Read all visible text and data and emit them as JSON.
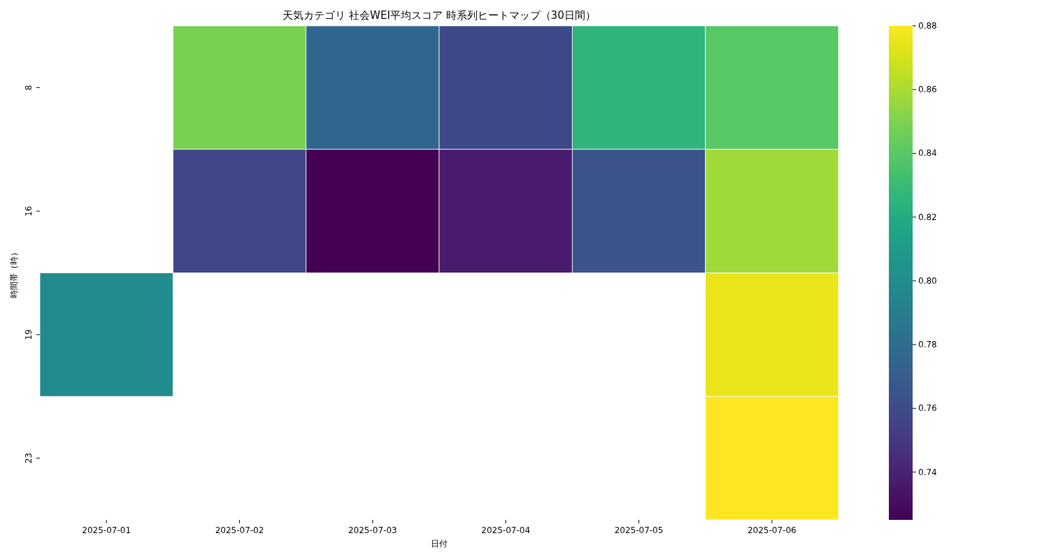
{
  "chart_data": {
    "type": "heatmap",
    "title": "天気カテゴリ 社会WEI平均スコア 時系列ヒートマップ（30日間）",
    "xlabel": "日付",
    "ylabel": "時間帯（時）",
    "categories": [
      "2025-07-01",
      "2025-07-02",
      "2025-07-03",
      "2025-07-04",
      "2025-07-05",
      "2025-07-06"
    ],
    "y_categories": [
      "8",
      "16",
      "19",
      "23"
    ],
    "cells": [
      [
        null,
        0.849,
        0.776,
        0.759,
        0.826,
        0.84
      ],
      [
        null,
        0.758,
        0.725,
        0.736,
        0.764,
        0.858
      ],
      [
        0.799,
        null,
        null,
        null,
        null,
        0.875
      ],
      [
        null,
        null,
        null,
        null,
        null,
        0.88
      ]
    ],
    "clim": [
      0.725,
      0.88
    ],
    "cticks": [
      {
        "value": 0.74,
        "label": "0.74"
      },
      {
        "value": 0.76,
        "label": "0.76"
      },
      {
        "value": 0.78,
        "label": "0.78"
      },
      {
        "value": 0.8,
        "label": "0.80"
      },
      {
        "value": 0.82,
        "label": "0.82"
      },
      {
        "value": 0.84,
        "label": "0.84"
      },
      {
        "value": 0.86,
        "label": "0.86"
      },
      {
        "value": 0.88,
        "label": "0.88"
      }
    ]
  }
}
